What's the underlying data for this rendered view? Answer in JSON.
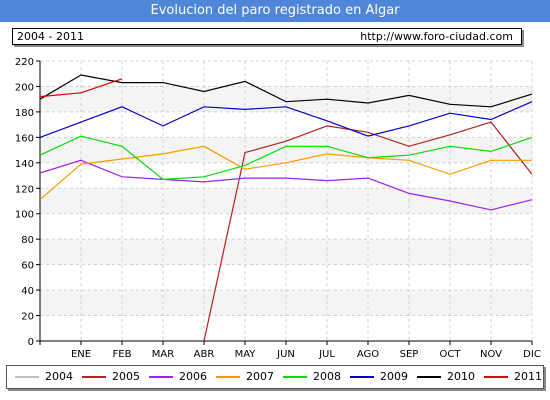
{
  "header": {
    "title": "Evolucion del paro registrado en Algar",
    "range": "2004 - 2011",
    "url": "http://www.foro-ciudad.com"
  },
  "chart_data": {
    "type": "line",
    "title": "Evolucion del paro registrado en Algar",
    "xlabel": "",
    "ylabel": "",
    "categories": [
      "",
      "ENE",
      "FEB",
      "MAR",
      "ABR",
      "MAY",
      "JUN",
      "JUL",
      "AGO",
      "SEP",
      "OCT",
      "NOV",
      "DIC"
    ],
    "ylim": [
      0,
      220
    ],
    "yticks": [
      0,
      20,
      40,
      60,
      80,
      100,
      120,
      140,
      160,
      180,
      200,
      220
    ],
    "grid": true,
    "legend_position": "bottom",
    "series": [
      {
        "name": "2004",
        "color": "#c0c0c0",
        "values": [
          null,
          null,
          null,
          null,
          null,
          null,
          null,
          null,
          null,
          null,
          null,
          null,
          null
        ]
      },
      {
        "name": "2005",
        "color": "#b22222",
        "values": [
          null,
          null,
          null,
          null,
          0,
          148,
          157,
          169,
          164,
          153,
          162,
          172,
          131
        ]
      },
      {
        "name": "2006",
        "color": "#a020f0",
        "values": [
          132,
          142,
          129,
          127,
          125,
          128,
          128,
          126,
          128,
          116,
          110,
          103,
          111
        ]
      },
      {
        "name": "2007",
        "color": "#ff9900",
        "values": [
          111,
          139,
          143,
          147,
          153,
          135,
          140,
          147,
          144,
          142,
          131,
          142,
          142
        ]
      },
      {
        "name": "2008",
        "color": "#00dd00",
        "values": [
          146,
          161,
          153,
          127,
          129,
          138,
          153,
          153,
          144,
          146,
          153,
          149,
          160
        ]
      },
      {
        "name": "2009",
        "color": "#0000cc",
        "values": [
          160,
          172,
          184,
          169,
          184,
          182,
          184,
          173,
          161,
          169,
          179,
          174,
          188
        ]
      },
      {
        "name": "2010",
        "color": "#000000",
        "values": [
          190,
          209,
          203,
          203,
          196,
          204,
          188,
          190,
          187,
          193,
          186,
          184,
          194
        ]
      },
      {
        "name": "2011",
        "color": "#dd0000",
        "values": [
          192,
          195,
          206,
          null,
          null,
          null,
          null,
          null,
          null,
          null,
          null,
          null,
          null
        ]
      }
    ]
  }
}
